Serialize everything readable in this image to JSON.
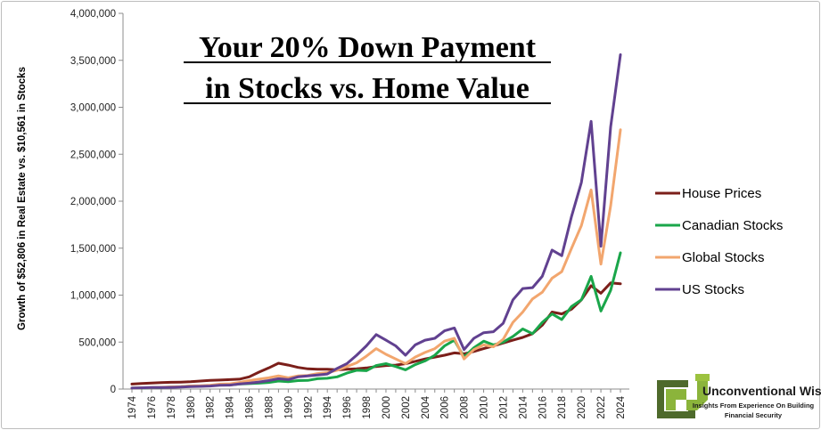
{
  "chart_data": {
    "type": "line",
    "title_lines": [
      "Your 20% Down Payment",
      "in Stocks vs. Home Value"
    ],
    "ylabel": "Growth of $52,806 in Real Estate vs. $10,561 in Stocks",
    "xlabel": "",
    "ylim": [
      0,
      4000000
    ],
    "yticks": [
      0,
      500000,
      1000000,
      1500000,
      2000000,
      2500000,
      3000000,
      3500000,
      4000000
    ],
    "ytick_labels": [
      "0",
      "500,000",
      "1,000,000",
      "1,500,000",
      "2,000,000",
      "2,500,000",
      "3,000,000",
      "3,500,000",
      "4,000,000"
    ],
    "xlim": [
      1974,
      2024
    ],
    "xtick_labels": [
      "1974",
      "1976",
      "1978",
      "1980",
      "1982",
      "1984",
      "1986",
      "1988",
      "1990",
      "1992",
      "1994",
      "1996",
      "1998",
      "2000",
      "2002",
      "2004",
      "2006",
      "2008",
      "2010",
      "2012",
      "2014",
      "2016",
      "2018",
      "2020",
      "2022",
      "2024"
    ],
    "x": [
      1974,
      1975,
      1976,
      1977,
      1978,
      1979,
      1980,
      1981,
      1982,
      1983,
      1984,
      1985,
      1986,
      1987,
      1988,
      1989,
      1990,
      1991,
      1992,
      1993,
      1994,
      1995,
      1996,
      1997,
      1998,
      1999,
      2000,
      2001,
      2002,
      2003,
      2004,
      2005,
      2006,
      2007,
      2008,
      2009,
      2010,
      2011,
      2012,
      2013,
      2014,
      2015,
      2016,
      2017,
      2018,
      2019,
      2020,
      2021,
      2022,
      2023,
      2024
    ],
    "legend_position": "right",
    "grid": false,
    "series": [
      {
        "name": "House Prices",
        "color": "#7b1f1a",
        "values": [
          52806,
          60000,
          64000,
          68000,
          72000,
          74000,
          78000,
          85000,
          92000,
          96000,
          100000,
          105000,
          130000,
          180000,
          225000,
          275000,
          255000,
          230000,
          215000,
          210000,
          210000,
          205000,
          210000,
          215000,
          225000,
          240000,
          250000,
          255000,
          270000,
          295000,
          320000,
          340000,
          360000,
          385000,
          375000,
          400000,
          430000,
          460000,
          490000,
          520000,
          550000,
          590000,
          680000,
          820000,
          800000,
          850000,
          950000,
          1100000,
          1020000,
          1130000,
          1120000
        ]
      },
      {
        "name": "Canadian Stocks",
        "color": "#1aa64a",
        "values": [
          10561,
          12000,
          14000,
          17000,
          21000,
          25000,
          32000,
          31000,
          36000,
          45000,
          44000,
          53000,
          58000,
          63000,
          70000,
          85000,
          78000,
          90000,
          92000,
          110000,
          115000,
          130000,
          170000,
          200000,
          195000,
          250000,
          270000,
          240000,
          205000,
          260000,
          300000,
          360000,
          460000,
          520000,
          340000,
          440000,
          510000,
          470000,
          500000,
          560000,
          640000,
          590000,
          710000,
          800000,
          740000,
          880000,
          950000,
          1200000,
          830000,
          1050000,
          1450000
        ]
      },
      {
        "name": "Global Stocks",
        "color": "#f2a66e",
        "values": [
          10561,
          13000,
          16000,
          19000,
          23000,
          27000,
          33000,
          35000,
          40000,
          52000,
          55000,
          70000,
          90000,
          105000,
          120000,
          140000,
          120000,
          140000,
          145000,
          165000,
          175000,
          200000,
          240000,
          280000,
          350000,
          430000,
          370000,
          320000,
          270000,
          340000,
          390000,
          430000,
          510000,
          540000,
          320000,
          420000,
          470000,
          450000,
          530000,
          710000,
          820000,
          960000,
          1030000,
          1180000,
          1250000,
          1500000,
          1740000,
          2120000,
          1330000,
          1950000,
          2760000
        ]
      },
      {
        "name": "US Stocks",
        "color": "#614190",
        "values": [
          10561,
          13000,
          16000,
          17000,
          18000,
          21000,
          26000,
          28000,
          32000,
          40000,
          42000,
          55000,
          63000,
          75000,
          90000,
          110000,
          100000,
          130000,
          140000,
          150000,
          160000,
          220000,
          270000,
          360000,
          460000,
          580000,
          520000,
          460000,
          360000,
          470000,
          520000,
          540000,
          620000,
          650000,
          420000,
          540000,
          600000,
          610000,
          700000,
          950000,
          1070000,
          1080000,
          1200000,
          1480000,
          1420000,
          1840000,
          2200000,
          2850000,
          1520000,
          2790000,
          3560000
        ]
      }
    ]
  },
  "logo": {
    "name": "Unconventional Wisdom",
    "tagline_lines": [
      "Insights From Experience On Building",
      "Financial Security"
    ]
  }
}
